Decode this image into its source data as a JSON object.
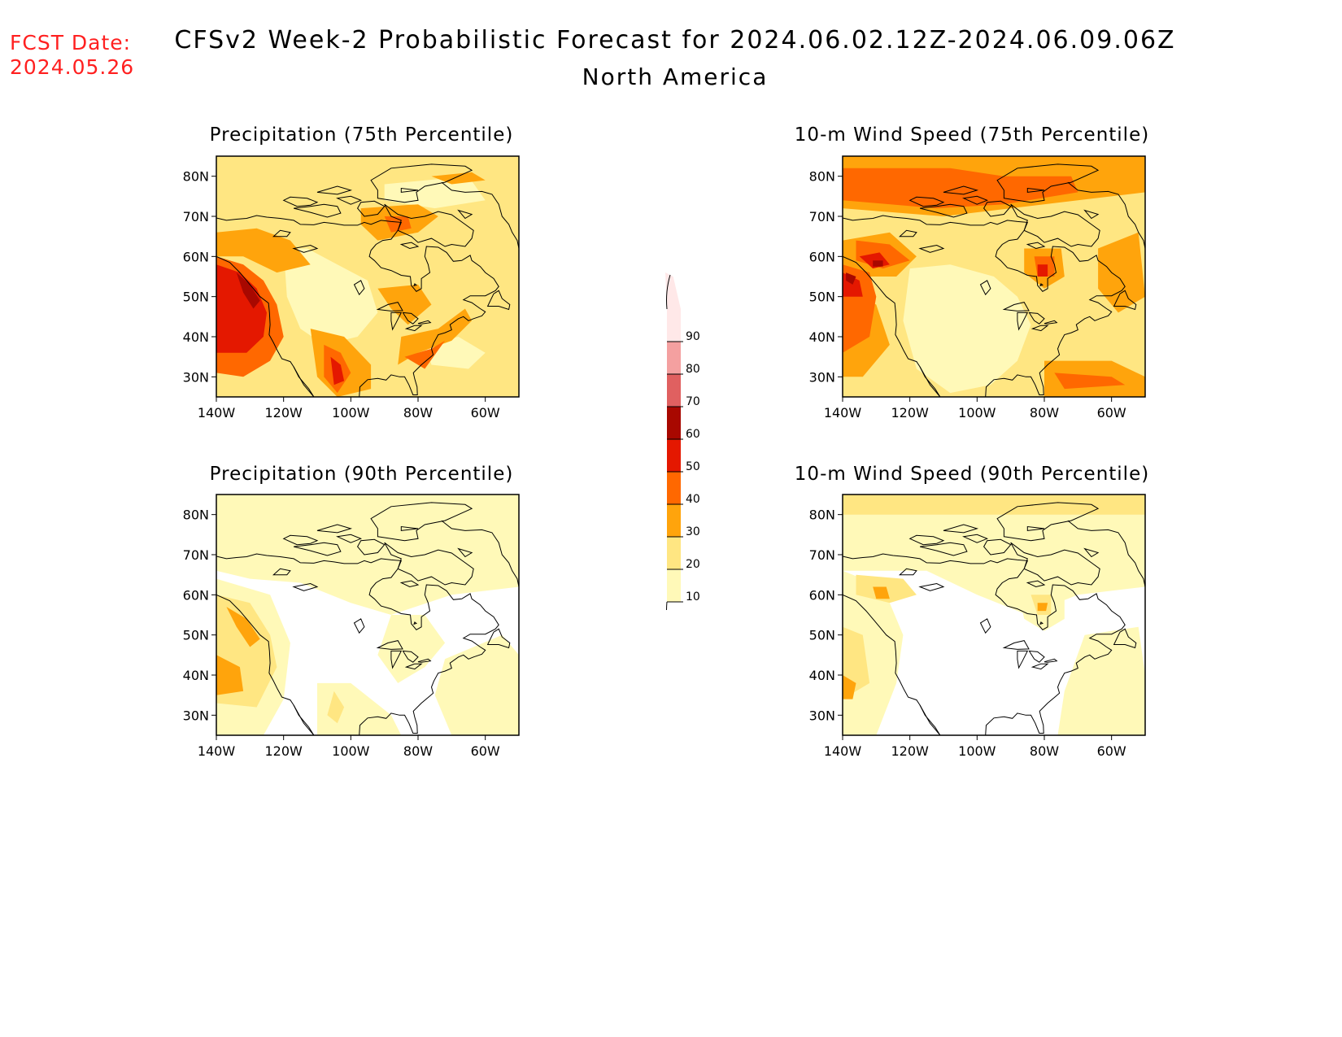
{
  "header": {
    "fcst_label": "FCST Date:",
    "fcst_date": "2024.05.26",
    "title": "CFSv2 Week-2 Probabilistic Forecast for 2024.06.02.12Z-2024.06.09.06Z",
    "subtitle": "North America"
  },
  "colors": {
    "c10": "#fff9b8",
    "c20": "#ffe682",
    "c30": "#ffa40c",
    "c40": "#ff6800",
    "c50": "#e41800",
    "c60": "#a80800",
    "c70": "#e06060",
    "c80": "#f4a0a0",
    "c90": "#ffe8e8",
    "coast": "#000000"
  },
  "legend": {
    "labels": [
      "10",
      "20",
      "30",
      "40",
      "50",
      "60",
      "70",
      "80",
      "90"
    ]
  },
  "axes": {
    "lat_labels": [
      "30N",
      "40N",
      "50N",
      "60N",
      "70N",
      "80N"
    ],
    "lon_labels": [
      "140W",
      "120W",
      "100W",
      "80W",
      "60W"
    ],
    "lat_range": [
      25,
      85
    ],
    "lon_range": [
      -140,
      -50
    ]
  },
  "panels": [
    {
      "id": "precip-75",
      "title": "Precipitation (75th Percentile)",
      "intensity": "high",
      "field": "precip"
    },
    {
      "id": "wind-75",
      "title": "10-m Wind Speed (75th Percentile)",
      "intensity": "high",
      "field": "wind"
    },
    {
      "id": "precip-90",
      "title": "Precipitation (90th Percentile)",
      "intensity": "low",
      "field": "precip"
    },
    {
      "id": "wind-90",
      "title": "10-m Wind Speed (90th Percentile)",
      "intensity": "low",
      "field": "wind"
    }
  ]
}
